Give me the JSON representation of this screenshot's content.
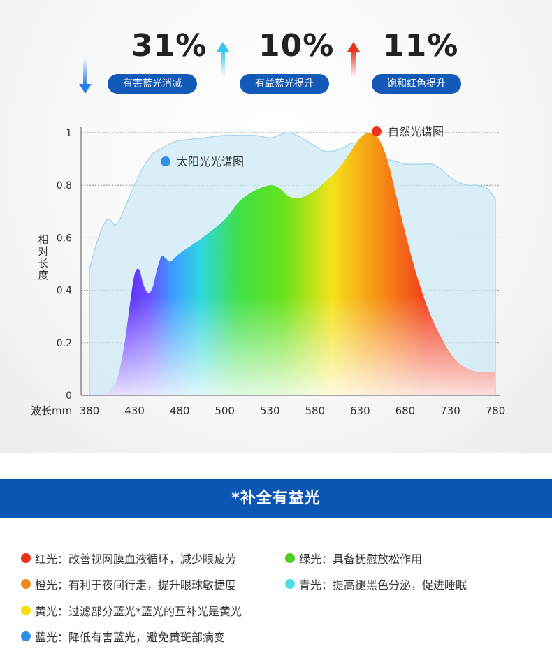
{
  "stats": [
    {
      "value": "31%",
      "label": "有害蓝光消减",
      "arrow": "down",
      "arrow_color": "#2b7de9"
    },
    {
      "value": "10%",
      "label": "有益蓝光提升",
      "arrow": "up",
      "arrow_color": "#35c6ef"
    },
    {
      "value": "11%",
      "label": "饱和红色提升",
      "arrow": "up",
      "arrow_color": "#e8341c"
    }
  ],
  "chart_data": {
    "type": "area",
    "ylabel": "相对长度",
    "xlabel": "波长mm",
    "x_ticks": [
      "380",
      "430",
      "480",
      "500",
      "530",
      "580",
      "630",
      "680",
      "730",
      "780"
    ],
    "y_ticks": [
      "0",
      "0.2",
      "0.4",
      "0.6",
      "0.8",
      "1"
    ],
    "ylim": [
      0,
      1
    ],
    "grid": "horizontal dotted",
    "series": [
      {
        "name": "太阳光光谱图",
        "color": "#bfe2f3",
        "x": [
          380,
          390,
          400,
          410,
          420,
          430,
          440,
          450,
          460,
          470,
          480,
          490,
          500,
          510,
          520,
          530,
          540,
          550,
          560,
          570,
          580,
          590,
          600,
          610,
          620,
          630,
          640,
          650,
          660,
          670,
          680,
          690,
          700,
          710,
          720,
          730,
          740,
          750,
          760,
          770,
          780
        ],
        "y": [
          0.48,
          0.6,
          0.67,
          0.65,
          0.72,
          0.8,
          0.87,
          0.92,
          0.94,
          0.96,
          0.97,
          0.98,
          0.99,
          0.99,
          0.99,
          0.98,
          0.99,
          1.0,
          0.99,
          0.97,
          0.95,
          0.93,
          0.93,
          0.94,
          0.96,
          0.96,
          0.95,
          0.92,
          0.9,
          0.89,
          0.88,
          0.88,
          0.88,
          0.88,
          0.86,
          0.83,
          0.81,
          0.8,
          0.8,
          0.79,
          0.75
        ]
      },
      {
        "name": "自然光谱图",
        "color": "#e8341c",
        "x": [
          410,
          415,
          420,
          425,
          430,
          435,
          440,
          445,
          450,
          455,
          460,
          465,
          470,
          480,
          490,
          500,
          510,
          520,
          530,
          540,
          550,
          560,
          570,
          580,
          590,
          600,
          610,
          620,
          630,
          640,
          650,
          660,
          670,
          680,
          690,
          700,
          710,
          720,
          730,
          740,
          750,
          760,
          770,
          780
        ],
        "y": [
          0.05,
          0.12,
          0.22,
          0.35,
          0.46,
          0.48,
          0.42,
          0.39,
          0.41,
          0.48,
          0.53,
          0.52,
          0.51,
          0.54,
          0.6,
          0.67,
          0.74,
          0.78,
          0.8,
          0.79,
          0.76,
          0.75,
          0.76,
          0.78,
          0.81,
          0.84,
          0.88,
          0.93,
          0.98,
          1.0,
          0.98,
          0.9,
          0.76,
          0.62,
          0.49,
          0.38,
          0.29,
          0.22,
          0.16,
          0.12,
          0.1,
          0.09,
          0.09,
          0.09
        ]
      }
    ]
  },
  "banner": "*补全有益光",
  "legend": [
    {
      "label": "红光：改善视网膜血液循环，减少眼疲劳",
      "color": "#e8341c"
    },
    {
      "label": "绿光：具备抚慰放松作用",
      "color": "#4ccf1f"
    },
    {
      "label": "橙光：有利于夜间行走，提升眼球敏捷度",
      "color": "#f08a1d"
    },
    {
      "label": "青光：提高褪黑色分泌，促进睡眠",
      "color": "#49e0e3"
    },
    {
      "label": "黄光：过滤部分蓝光*蓝光的互补光是黄光",
      "color": "#f7dc1a"
    },
    {
      "label": "蓝光：降低有害蓝光，避免黄斑部病变",
      "color": "#2f8ee8"
    }
  ]
}
